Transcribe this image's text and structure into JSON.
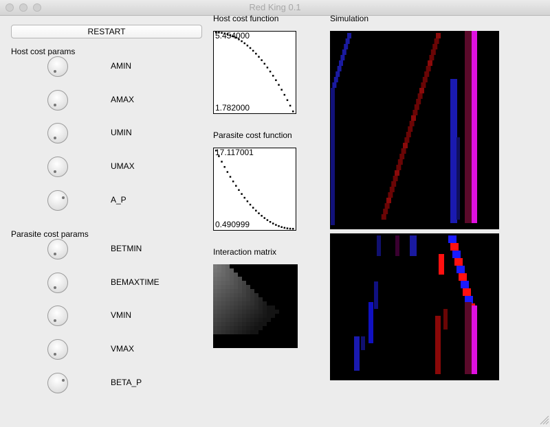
{
  "window": {
    "title": "Red King 0.1"
  },
  "controls": {
    "restart": "RESTART",
    "host_cost_params": {
      "heading": "Host cost params",
      "knobs": [
        "AMIN",
        "AMAX",
        "UMIN",
        "UMAX",
        "A_P"
      ]
    },
    "parasite_cost_params": {
      "heading": "Parasite cost params",
      "knobs": [
        "BETMIN",
        "BEMAXTIME",
        "VMIN",
        "VMAX",
        "BETA_P"
      ]
    }
  },
  "plots": {
    "host_cost": {
      "title": "Host cost function",
      "max_label": "5.454000",
      "min_label": "1.782000"
    },
    "parasite_cost": {
      "title": "Parasite cost function",
      "max_label": "17.117001",
      "min_label": "0.490999"
    },
    "interaction_matrix": {
      "title": "Interaction matrix"
    }
  },
  "simulation": {
    "title": "Simulation"
  }
}
